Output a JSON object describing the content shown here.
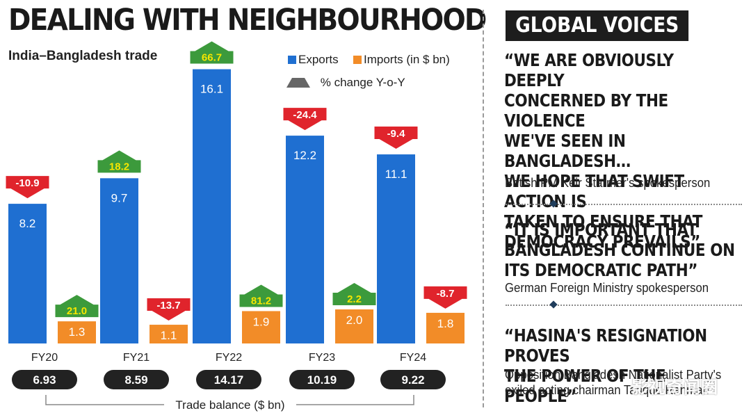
{
  "title": "DEALING WITH NEIGHBOURHOOD",
  "chart_data": {
    "type": "bar",
    "title": "DEALING WITH NEIGHBOURHOOD",
    "subtitle": "India–Bangladesh trade",
    "categories": [
      "FY20",
      "FY21",
      "FY22",
      "FY23",
      "FY24"
    ],
    "series": [
      {
        "name": "Exports",
        "values": [
          8.2,
          9.7,
          16.1,
          12.2,
          11.1
        ],
        "color": "#1f6fd1",
        "yoy_change": [
          -10.9,
          18.2,
          66.7,
          -24.4,
          -9.4
        ]
      },
      {
        "name": "Imports (in $ bn)",
        "values": [
          1.3,
          1.1,
          1.9,
          2.0,
          1.8
        ],
        "color": "#f28c28",
        "yoy_change": [
          21.0,
          -13.7,
          81.2,
          2.2,
          -8.7
        ]
      }
    ],
    "yoy_legend": "% change Y-o-Y",
    "yoy_labels": {
      "exports": [
        "-10.9",
        "18.2",
        "66.7",
        "-24.4",
        "-9.4"
      ],
      "imports": [
        "21.0",
        "-13.7",
        "81.2",
        "2.2",
        "-8.7"
      ]
    },
    "trade_balance": {
      "label": "Trade balance ($ bn)",
      "values": [
        "6.93",
        "8.59",
        "14.17",
        "10.19",
        "9.22"
      ]
    },
    "colors": {
      "up": "#3c9a3c",
      "down": "#e0242c",
      "up_text": "#f6e600",
      "balance_pill": "#222222"
    },
    "grid": false,
    "legend_position": "top-right"
  },
  "global_voices": {
    "heading": "GLOBAL VOICES",
    "quotes": [
      {
        "lines": [
          "“WE ARE OBVIOUSLY DEEPLY",
          "CONCERNED BY THE VIOLENCE",
          "WE'VE SEEN IN BANGLADESH…",
          "WE HOPE THAT SWIFT ACTION IS",
          "TAKEN TO ENSURE THAT",
          "DEMOCRACY PREVAILS”"
        ],
        "source": [
          "British PM Keir Starmer's spokesperson"
        ]
      },
      {
        "lines": [
          "“IT IS IMPORTANT THAT",
          "BANGLADESH CONTINUE ON",
          "ITS DEMOCRATIC PATH”"
        ],
        "source": [
          "German Foreign Ministry spokesperson"
        ]
      },
      {
        "lines": [
          "“HASINA'S RESIGNATION PROVES",
          "THE POWER OF THE PEOPLE”"
        ],
        "source": [
          "Opposition Bangladesh Nationalist Party's",
          "exiled acting chairman Tarique Rahman"
        ]
      }
    ]
  },
  "watermark": "影视奇闻圈"
}
